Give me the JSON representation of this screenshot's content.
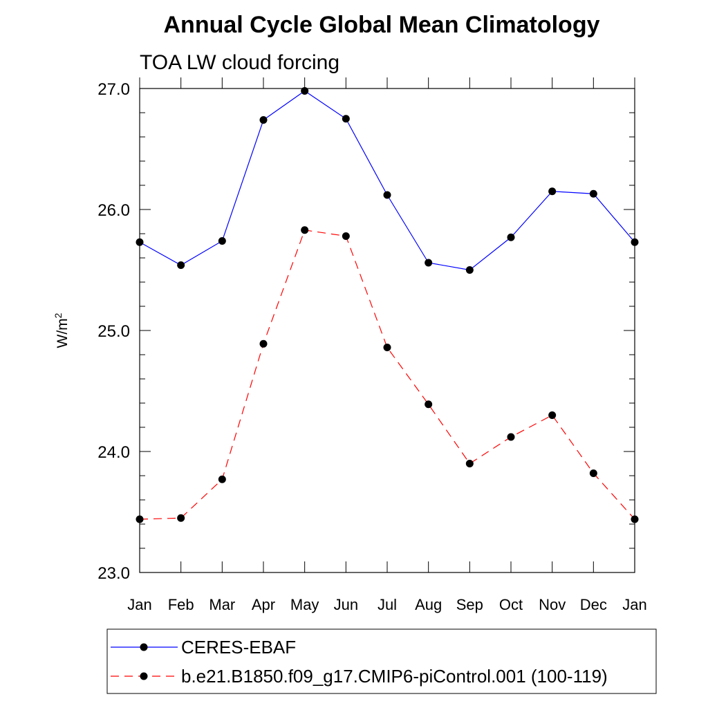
{
  "title": "Annual Cycle Global Mean Climatology",
  "chart_data": {
    "type": "line",
    "subtitle": "TOA LW cloud forcing",
    "ylabel": "W/m",
    "ylabel_superscript": "2",
    "ylim": [
      23.0,
      27.0
    ],
    "yticks": [
      23.0,
      24.0,
      25.0,
      26.0,
      27.0
    ],
    "ytick_labels": [
      "23.0",
      "24.0",
      "25.0",
      "26.0",
      "27.0"
    ],
    "categories": [
      "Jan",
      "Feb",
      "Mar",
      "Apr",
      "May",
      "Jun",
      "Jul",
      "Aug",
      "Sep",
      "Oct",
      "Nov",
      "Dec",
      "Jan"
    ],
    "series": [
      {
        "name": "CERES-EBAF",
        "color": "#0000ff",
        "dash": "solid",
        "values": [
          25.73,
          25.54,
          25.74,
          26.74,
          26.98,
          26.75,
          26.12,
          25.56,
          25.5,
          25.77,
          26.15,
          26.13,
          25.73
        ]
      },
      {
        "name": "b.e21.B1850.f09_g17.CMIP6-piControl.001 (100-119)",
        "color": "#ff0000",
        "dash": "dashed",
        "values": [
          23.44,
          23.45,
          23.77,
          24.89,
          25.83,
          25.78,
          24.86,
          24.39,
          23.9,
          24.12,
          24.3,
          23.82,
          23.44
        ]
      }
    ],
    "legend_position": "bottom"
  }
}
